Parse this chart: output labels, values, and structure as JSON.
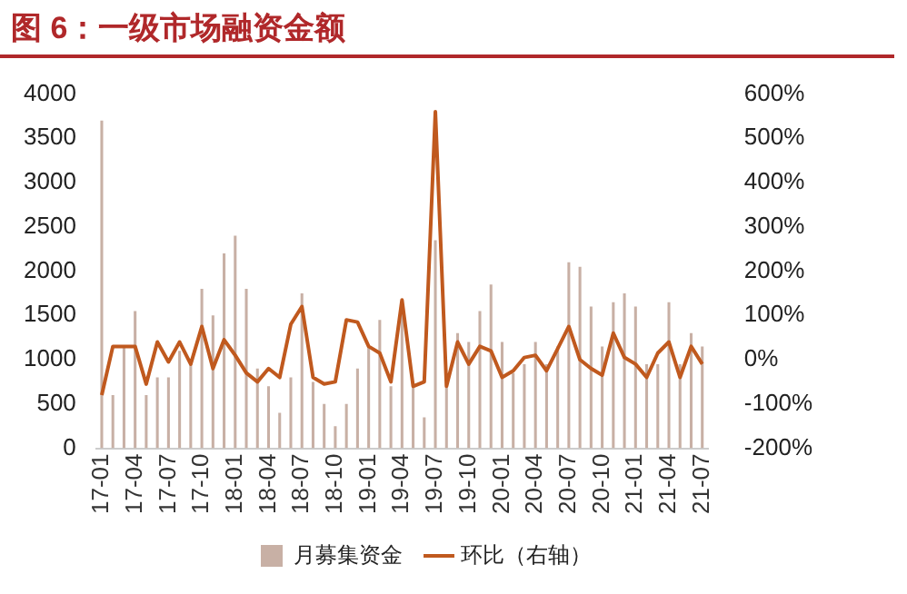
{
  "chart_data": {
    "type": "bar",
    "title": "图 6：一级市场融资金额",
    "categories": [
      "17-01",
      null,
      null,
      "17-04",
      null,
      null,
      "17-07",
      null,
      null,
      "17-10",
      null,
      null,
      "18-01",
      null,
      null,
      "18-04",
      null,
      null,
      "18-07",
      null,
      null,
      "18-10",
      null,
      null,
      "19-01",
      null,
      null,
      "19-04",
      null,
      null,
      "19-07",
      null,
      null,
      "19-10",
      null,
      null,
      "20-01",
      null,
      null,
      "20-04",
      null,
      null,
      "20-07",
      null,
      null,
      "20-10",
      null,
      null,
      "21-01",
      null,
      null,
      "21-04",
      null,
      null,
      "21-07"
    ],
    "series": [
      {
        "name": "月募集资金",
        "color": "#c8b0a5",
        "values": [
          3700,
          600,
          1150,
          1550,
          600,
          800,
          800,
          1100,
          1000,
          1800,
          1500,
          2200,
          2400,
          1800,
          900,
          700,
          400,
          800,
          1750,
          750,
          500,
          250,
          500,
          900,
          1150,
          1450,
          700,
          1550,
          700,
          350,
          2350,
          700,
          1300,
          1200,
          1550,
          1850,
          1200,
          850,
          950,
          1200,
          950,
          1150,
          2100,
          2050,
          1600,
          1150,
          1650,
          1750,
          1600,
          950,
          950,
          1650,
          950,
          1300,
          1150
        ]
      },
      {
        "name": "环比（右轴）",
        "type": "line",
        "axis": "y2",
        "color": "#c0591e",
        "values": [
          -80,
          30,
          30,
          30,
          -55,
          40,
          -5,
          40,
          -10,
          75,
          -20,
          45,
          10,
          -30,
          -50,
          -20,
          -40,
          80,
          120,
          -40,
          -55,
          -50,
          90,
          85,
          30,
          15,
          -50,
          135,
          -60,
          -50,
          560,
          -60,
          40,
          -10,
          30,
          20,
          -40,
          -25,
          5,
          10,
          -25,
          25,
          75,
          0,
          -20,
          -35,
          60,
          5,
          -10,
          -40,
          15,
          40,
          -40,
          30,
          -10
        ]
      }
    ],
    "ylim": [
      0,
      4000
    ],
    "yticks": [
      0,
      500,
      1000,
      1500,
      2000,
      2500,
      3000,
      3500,
      4000
    ],
    "y2lim": [
      -200,
      600
    ],
    "y2ticks": [
      {
        "value": -200,
        "label": "-200%"
      },
      {
        "value": -100,
        "label": "-100%"
      },
      {
        "value": 0,
        "label": "0%"
      },
      {
        "value": 100,
        "label": "100%"
      },
      {
        "value": 200,
        "label": "200%"
      },
      {
        "value": 300,
        "label": "300%"
      },
      {
        "value": 400,
        "label": "400%"
      },
      {
        "value": 500,
        "label": "500%"
      },
      {
        "value": 600,
        "label": "600%"
      }
    ],
    "grid": false,
    "legend": "bottom"
  }
}
